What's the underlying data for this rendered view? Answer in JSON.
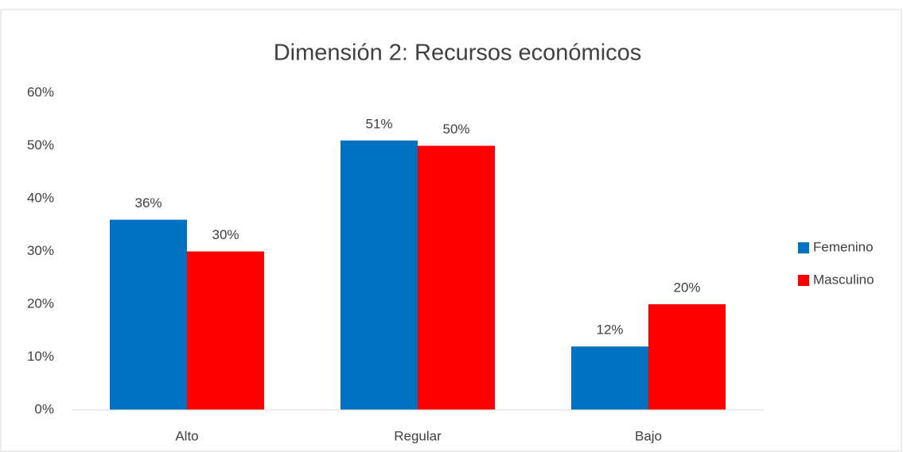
{
  "chart_data": {
    "type": "bar",
    "title": "Dimensión 2: Recursos económicos",
    "categories": [
      "Alto",
      "Regular",
      "Bajo"
    ],
    "series": [
      {
        "name": "Femenino",
        "color": "#0070c0",
        "values": [
          36,
          51,
          12
        ],
        "value_labels": [
          "36%",
          "51%",
          "12%"
        ]
      },
      {
        "name": "Masculino",
        "color": "#ff0000",
        "values": [
          30,
          50,
          20
        ],
        "value_labels": [
          "30%",
          "50%",
          "20%"
        ]
      }
    ],
    "ylim": [
      0,
      60
    ],
    "yticks": [
      {
        "value": 0,
        "label": "0%"
      },
      {
        "value": 10,
        "label": "10%"
      },
      {
        "value": 20,
        "label": "20%"
      },
      {
        "value": 30,
        "label": "30%"
      },
      {
        "value": 40,
        "label": "40%"
      },
      {
        "value": 50,
        "label": "50%"
      },
      {
        "value": 60,
        "label": "60%"
      }
    ],
    "grid": false,
    "legend": "right"
  }
}
